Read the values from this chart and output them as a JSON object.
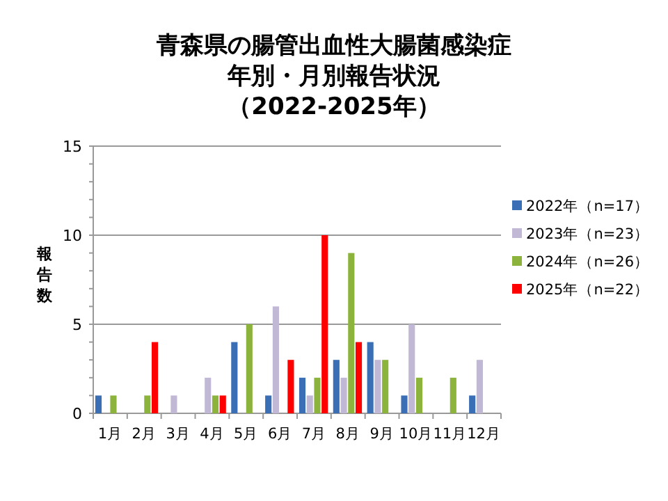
{
  "chart_data": {
    "type": "bar",
    "title": "青森県の腸管出血性大腸菌感染症年別・月別報告状況",
    "subtitle": "（2022-2025年）",
    "ylabel": "報告数",
    "categories": [
      "1月",
      "2月",
      "3月",
      "4月",
      "5月",
      "6月",
      "7月",
      "8月",
      "9月",
      "10月",
      "11月",
      "12月"
    ],
    "series": [
      {
        "name": "2022年（n=17）",
        "color": "#3a6fb5",
        "values": [
          1,
          0,
          0,
          0,
          4,
          1,
          2,
          3,
          4,
          1,
          0,
          1
        ]
      },
      {
        "name": "2023年（n=23）",
        "color": "#c0b8d4",
        "values": [
          0,
          0,
          1,
          2,
          0,
          6,
          1,
          2,
          3,
          5,
          0,
          3
        ]
      },
      {
        "name": "2024年（n=26）",
        "color": "#8cb43c",
        "values": [
          1,
          1,
          0,
          1,
          5,
          0,
          2,
          9,
          3,
          2,
          2,
          0
        ]
      },
      {
        "name": "2025年（n=22）",
        "color": "#ff0000",
        "values": [
          0,
          4,
          0,
          1,
          0,
          3,
          10,
          4,
          null,
          null,
          null,
          null
        ]
      }
    ],
    "ylim": [
      0,
      15
    ],
    "yticks": [
      0,
      5,
      10,
      15
    ],
    "grid": "y",
    "legend": "right"
  }
}
